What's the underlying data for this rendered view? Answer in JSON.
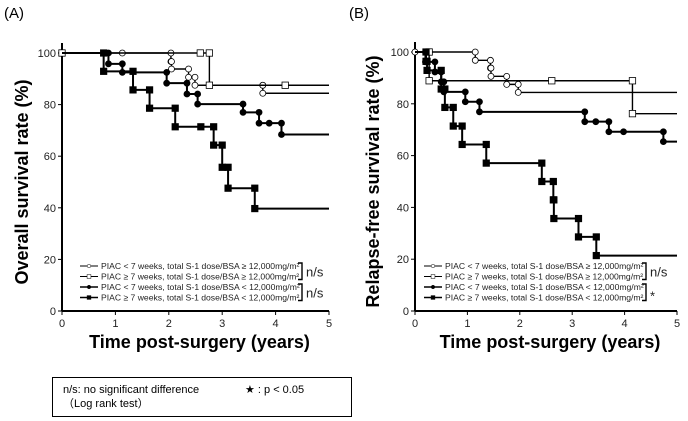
{
  "panels": [
    "(A)",
    "(B)"
  ],
  "footnote": {
    "ns": "n/s: no significant difference",
    "test": "（Log rank test）",
    "star": "★ : p < 0.05"
  },
  "chart_data": [
    {
      "type": "line",
      "subtype": "kaplan-meier step",
      "panel": "(A)",
      "xlabel": "Time post-surgery (years)",
      "ylabel": "Overall survival rate (%)",
      "xlim": [
        0,
        5
      ],
      "ylim": [
        0,
        100
      ],
      "xticks": [
        "0",
        "1",
        "2",
        "3",
        "4",
        "5"
      ],
      "yticks": [
        "0",
        "20",
        "40",
        "60",
        "80",
        "100"
      ],
      "grid": false,
      "legend_position": "bottom-right",
      "series": [
        {
          "name": "PIAC < 7 weeks, total S-1 dose/BSA ≥ 12,000mg/m²",
          "marker": "open-circle",
          "steps": [
            [
              0,
              100
            ],
            [
              2.04,
              96.7
            ],
            [
              2.05,
              93.8
            ],
            [
              2.37,
              90.6
            ],
            [
              2.49,
              87.5
            ],
            [
              3.76,
              84.4
            ]
          ],
          "censored": [
            [
              1.13,
              100
            ],
            [
              3.76,
              87.5
            ]
          ]
        },
        {
          "name": "PIAC ≥ 7 weeks, total S-1 dose/BSA ≥ 12,000mg/m²",
          "marker": "open-square",
          "steps": [
            [
              0,
              100
            ],
            [
              2.76,
              87.5
            ]
          ],
          "censored": [
            [
              0,
              100
            ],
            [
              2.59,
              100
            ],
            [
              4.18,
              87.5
            ]
          ]
        },
        {
          "name": "PIAC < 7 weeks, total S-1 dose/BSA < 12,000mg/m²",
          "marker": "filled-circle",
          "steps": [
            [
              0,
              100
            ],
            [
              0.87,
              95.8
            ],
            [
              1.13,
              92.5
            ],
            [
              1.96,
              88.3
            ],
            [
              2.34,
              84.1
            ],
            [
              2.54,
              80.2
            ],
            [
              3.39,
              77.0
            ],
            [
              3.69,
              72.8
            ],
            [
              4.11,
              68.4
            ]
          ],
          "censored": [
            [
              3.88,
              72.8
            ]
          ]
        },
        {
          "name": "PIAC ≥ 7 weeks, total S-1 dose/BSA < 12,000mg/m²",
          "marker": "filled-square",
          "steps": [
            [
              0,
              100
            ],
            [
              0.78,
              92.9
            ],
            [
              1.33,
              85.7
            ],
            [
              1.64,
              78.6
            ],
            [
              2.12,
              71.4
            ],
            [
              2.84,
              64.3
            ],
            [
              3.0,
              55.7
            ],
            [
              3.11,
              47.6
            ],
            [
              3.61,
              39.7
            ]
          ],
          "censored": [
            [
              2.6,
              71.4
            ]
          ]
        }
      ],
      "comparisons": [
        "n/s",
        "n/s"
      ]
    },
    {
      "type": "line",
      "subtype": "kaplan-meier step",
      "panel": "(B)",
      "xlabel": "Time post-surgery (years)",
      "ylabel": "Relapse-free survival rate (%)",
      "xlim": [
        0,
        5
      ],
      "ylim": [
        0,
        100
      ],
      "xticks": [
        "0",
        "1",
        "2",
        "3",
        "4",
        "5"
      ],
      "yticks": [
        "0",
        "20",
        "40",
        "60",
        "80",
        "100"
      ],
      "grid": false,
      "legend_position": "bottom-right",
      "series": [
        {
          "name": "PIAC < 7 weeks, total S-1 dose/BSA ≥ 12,000mg/m²",
          "marker": "open-circle",
          "steps": [
            [
              0,
              100
            ],
            [
              1.15,
              96.8
            ],
            [
              1.44,
              93.8
            ],
            [
              1.45,
              90.6
            ],
            [
              1.75,
              87.5
            ],
            [
              1.97,
              84.4
            ]
          ],
          "censored": [
            [
              0,
              100
            ]
          ]
        },
        {
          "name": "PIAC ≥ 7 weeks, total S-1 dose/BSA ≥ 12,000mg/m²",
          "marker": "open-square",
          "steps": [
            [
              0,
              100
            ],
            [
              0.27,
              88.9
            ],
            [
              4.15,
              76.2
            ]
          ],
          "censored": [
            [
              2.61,
              88.9
            ]
          ]
        },
        {
          "name": "PIAC < 7 weeks, total S-1 dose/BSA < 12,000mg/m²",
          "marker": "filled-circle",
          "steps": [
            [
              0,
              100
            ],
            [
              0.2,
              96.2
            ],
            [
              0.38,
              92.3
            ],
            [
              0.5,
              88.5
            ],
            [
              0.55,
              84.6
            ],
            [
              0.96,
              80.8
            ],
            [
              1.23,
              76.9
            ],
            [
              3.24,
              73.1
            ],
            [
              3.7,
              69.2
            ],
            [
              4.74,
              65.4
            ]
          ],
          "censored": [
            [
              3.45,
              73.1
            ],
            [
              3.98,
              69.2
            ]
          ]
        },
        {
          "name": "PIAC ≥ 7 weeks, total S-1 dose/BSA < 12,000mg/m²",
          "marker": "filled-square",
          "steps": [
            [
              0,
              100
            ],
            [
              0.21,
              96.4
            ],
            [
              0.23,
              92.9
            ],
            [
              0.5,
              85.7
            ],
            [
              0.57,
              78.6
            ],
            [
              0.73,
              71.4
            ],
            [
              0.9,
              64.3
            ],
            [
              1.36,
              57.1
            ],
            [
              2.42,
              50.0
            ],
            [
              2.64,
              42.9
            ],
            [
              2.65,
              35.7
            ],
            [
              3.12,
              28.6
            ],
            [
              3.46,
              21.4
            ]
          ],
          "censored": []
        }
      ],
      "comparisons": [
        "n/s",
        "*"
      ]
    }
  ]
}
